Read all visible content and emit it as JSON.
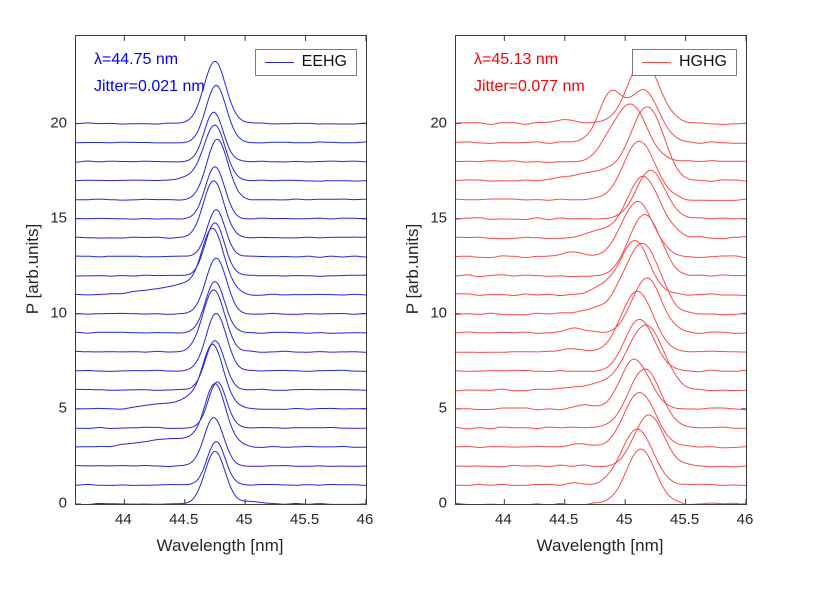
{
  "figure": {
    "background": "#ffffff",
    "description": "Two-panel waterfall plot comparing 21 consecutive single-shot FEL spectra for EEHG (left, blue) and HGHG (right, red)"
  },
  "chart_data": [
    {
      "type": "line",
      "name": "EEHG",
      "color": "#2626dd",
      "annotation_color": "#0000ff",
      "annotations": [
        "λ=44.75 nm",
        "Jitter=0.021 nm"
      ],
      "legend": {
        "label": "EEHG"
      },
      "xlabel": "Wavelength [nm]",
      "ylabel": "P [arb.units]",
      "x_range": [
        43.6,
        46
      ],
      "y_range": [
        0,
        24.6
      ],
      "xticks": [
        44,
        44.5,
        45,
        45.5,
        46
      ],
      "xtick_labels": [
        "44",
        "44.5",
        "45",
        "45.5",
        "46"
      ],
      "yticks": [
        0,
        5,
        10,
        15,
        20
      ],
      "ytick_labels": [
        "0",
        "5",
        "10",
        "15",
        "20"
      ],
      "grid": false,
      "legend_position": "top-right",
      "series_note": "21 stacked spectra; baseline offset equals shot index 0-20; peaks parameterized as [center_nm, amplitude, sigma_nm]",
      "spectra": [
        {
          "base": 0,
          "peaks": [
            [
              44.75,
              2.75,
              0.085
            ],
            [
              45.04,
              0.14,
              0.1
            ]
          ]
        },
        {
          "base": 1,
          "peaks": [
            [
              44.76,
              2.3,
              0.075
            ]
          ]
        },
        {
          "base": 2,
          "peaks": [
            [
              44.74,
              2.55,
              0.08
            ]
          ]
        },
        {
          "base": 3,
          "peaks": [
            [
              44.75,
              2.9,
              0.082
            ]
          ],
          "ramp": [
            43.72,
            44.5,
            0.45
          ]
        },
        {
          "base": 4,
          "peaks": [
            [
              44.77,
              2.4,
              0.075
            ]
          ]
        },
        {
          "base": 5,
          "peaks": [
            [
              44.73,
              3.05,
              0.085
            ],
            [
              44.52,
              0.2,
              0.06
            ]
          ],
          "ramp": [
            43.9,
            44.45,
            0.32
          ]
        },
        {
          "base": 6,
          "peaks": [
            [
              44.75,
              2.6,
              0.08
            ]
          ]
        },
        {
          "base": 7,
          "peaks": [
            [
              44.76,
              3.0,
              0.085
            ]
          ]
        },
        {
          "base": 8,
          "peaks": [
            [
              44.74,
              3.25,
              0.09
            ]
          ]
        },
        {
          "base": 9,
          "peaks": [
            [
              44.75,
              2.7,
              0.08
            ]
          ]
        },
        {
          "base": 10,
          "peaks": [
            [
              44.76,
              2.9,
              0.085
            ]
          ]
        },
        {
          "base": 11,
          "peaks": [
            [
              44.73,
              3.1,
              0.088
            ],
            [
              44.5,
              0.16,
              0.07
            ]
          ],
          "ramp": [
            43.78,
            44.45,
            0.4
          ]
        },
        {
          "base": 12,
          "peaks": [
            [
              44.75,
              2.8,
              0.08
            ]
          ]
        },
        {
          "base": 13,
          "peaks": [
            [
              44.76,
              2.5,
              0.075
            ]
          ]
        },
        {
          "base": 14,
          "peaks": [
            [
              44.74,
              3.0,
              0.085
            ]
          ]
        },
        {
          "base": 15,
          "peaks": [
            [
              44.75,
              2.7,
              0.08
            ]
          ]
        },
        {
          "base": 16,
          "peaks": [
            [
              44.77,
              3.15,
              0.088
            ]
          ]
        },
        {
          "base": 17,
          "peaks": [
            [
              44.75,
              2.9,
              0.085
            ],
            [
              44.58,
              0.28,
              0.08
            ]
          ]
        },
        {
          "base": 18,
          "peaks": [
            [
              44.74,
              2.6,
              0.078
            ]
          ]
        },
        {
          "base": 19,
          "peaks": [
            [
              44.76,
              3.0,
              0.085
            ]
          ]
        },
        {
          "base": 20,
          "peaks": [
            [
              44.75,
              3.25,
              0.09
            ]
          ]
        }
      ]
    },
    {
      "type": "line",
      "name": "HGHG",
      "color": "#f74c4c",
      "annotation_color": "#ff0000",
      "annotations": [
        "λ=45.13 nm",
        "Jitter=0.077 nm"
      ],
      "legend": {
        "label": "HGHG"
      },
      "xlabel": "Wavelength [nm]",
      "ylabel": "P [arb.units]",
      "x_range": [
        43.6,
        46
      ],
      "y_range": [
        0,
        24.6
      ],
      "xticks": [
        44,
        44.5,
        45,
        45.5,
        46
      ],
      "xtick_labels": [
        "44",
        "44.5",
        "45",
        "45.5",
        "46"
      ],
      "yticks": [
        0,
        5,
        10,
        15,
        20
      ],
      "ytick_labels": [
        "0",
        "5",
        "10",
        "15",
        "20"
      ],
      "grid": false,
      "legend_position": "top-right",
      "series_note": "21 stacked spectra; baseline offset equals shot index 0-20; peaks parameterized as [center_nm, amplitude, sigma_nm]",
      "spectra": [
        {
          "base": 0,
          "peaks": [
            [
              45.13,
              2.85,
              0.12
            ]
          ]
        },
        {
          "base": 1,
          "peaks": [
            [
              45.1,
              2.95,
              0.13
            ],
            [
              44.6,
              0.12,
              0.08
            ]
          ]
        },
        {
          "base": 2,
          "peaks": [
            [
              45.2,
              2.7,
              0.12
            ]
          ]
        },
        {
          "base": 3,
          "peaks": [
            [
              45.12,
              2.85,
              0.13
            ],
            [
              44.62,
              0.14,
              0.07
            ]
          ]
        },
        {
          "base": 4,
          "peaks": [
            [
              45.16,
              3.1,
              0.13
            ]
          ]
        },
        {
          "base": 5,
          "peaks": [
            [
              45.08,
              2.6,
              0.12
            ],
            [
              44.66,
              0.16,
              0.08
            ]
          ]
        },
        {
          "base": 6,
          "peaks": [
            [
              45.17,
              3.0,
              0.14
            ]
          ],
          "ramp": [
            44.3,
            45.0,
            0.45
          ]
        },
        {
          "base": 7,
          "peaks": [
            [
              45.12,
              2.75,
              0.12
            ]
          ]
        },
        {
          "base": 8,
          "peaks": [
            [
              45.1,
              3.2,
              0.13
            ],
            [
              44.55,
              0.2,
              0.07
            ]
          ]
        },
        {
          "base": 9,
          "peaks": [
            [
              45.18,
              2.85,
              0.12
            ],
            [
              44.6,
              0.22,
              0.08
            ]
          ]
        },
        {
          "base": 10,
          "peaks": [
            [
              45.14,
              3.3,
              0.14
            ]
          ],
          "ramp": [
            44.4,
            45.0,
            0.4
          ]
        },
        {
          "base": 11,
          "peaks": [
            [
              45.08,
              2.8,
              0.12
            ],
            [
              44.82,
              0.38,
              0.1
            ]
          ]
        },
        {
          "base": 12,
          "peaks": [
            [
              45.16,
              3.25,
              0.13
            ]
          ]
        },
        {
          "base": 13,
          "peaks": [
            [
              45.1,
              2.9,
              0.13
            ],
            [
              44.56,
              0.28,
              0.09
            ]
          ]
        },
        {
          "base": 14,
          "peaks": [
            [
              45.15,
              3.2,
              0.14
            ],
            [
              44.78,
              0.32,
              0.1
            ]
          ]
        },
        {
          "base": 15,
          "peaks": [
            [
              45.21,
              2.5,
              0.12
            ]
          ]
        },
        {
          "base": 16,
          "peaks": [
            [
              45.12,
              3.1,
              0.13
            ]
          ]
        },
        {
          "base": 17,
          "peaks": [
            [
              45.18,
              3.35,
              0.13
            ]
          ],
          "ramp": [
            44.15,
            44.95,
            0.55
          ]
        },
        {
          "base": 18,
          "peaks": [
            [
              45.05,
              2.95,
              0.13
            ],
            [
              44.85,
              0.55,
              0.1
            ]
          ]
        },
        {
          "base": 19,
          "peaks": [
            [
              44.88,
              2.55,
              0.1
            ],
            [
              45.16,
              2.7,
              0.12
            ]
          ]
        },
        {
          "base": 20,
          "peaks": [
            [
              45.15,
              3.3,
              0.13
            ],
            [
              44.52,
              0.18,
              0.08
            ]
          ]
        }
      ]
    }
  ]
}
